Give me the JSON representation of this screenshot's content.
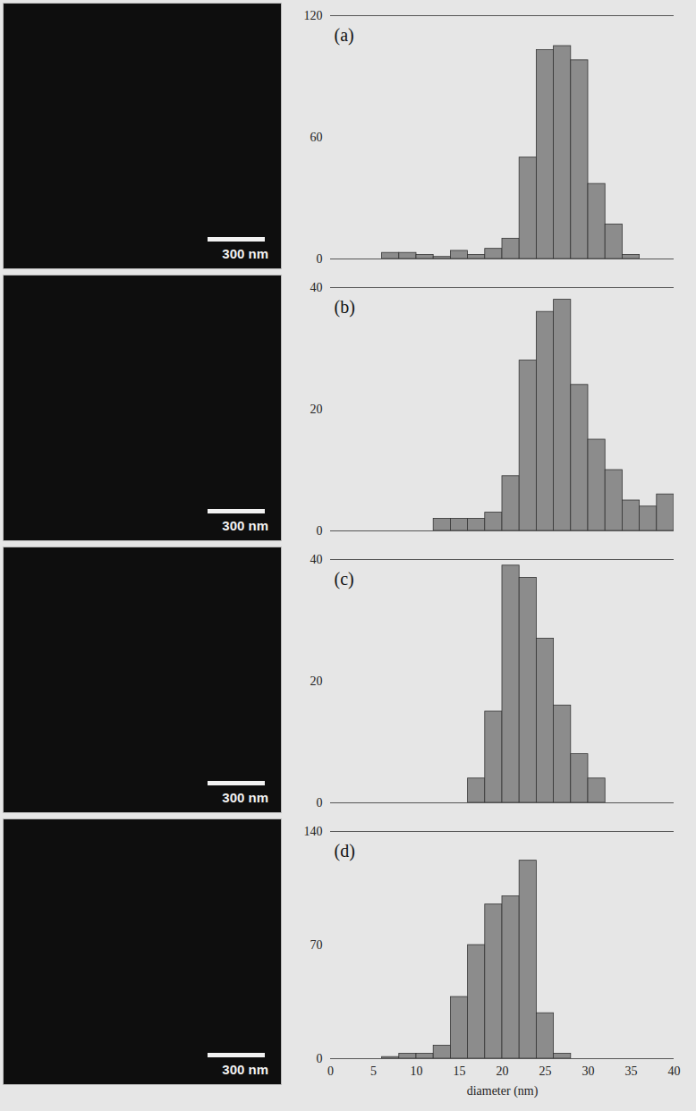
{
  "chart_data": [
    {
      "type": "histogram",
      "title": "(a)",
      "bins": [
        0,
        2,
        4,
        6,
        8,
        10,
        12,
        14,
        16,
        18,
        20,
        22,
        24,
        26,
        28,
        30,
        32,
        34,
        36,
        38,
        40
      ],
      "counts": [
        0,
        0,
        0,
        3,
        3,
        2,
        1,
        4,
        2,
        5,
        10,
        50,
        103,
        105,
        98,
        37,
        17,
        2,
        0,
        0
      ],
      "xlim": [
        0,
        40
      ],
      "ylim": [
        0,
        120
      ],
      "yticks": [
        0,
        60,
        120
      ],
      "tick_labels": "y",
      "color": "#8c8c8c"
    },
    {
      "type": "histogram",
      "title": "(b)",
      "bins": [
        0,
        2,
        4,
        6,
        8,
        10,
        12,
        14,
        16,
        18,
        20,
        22,
        24,
        26,
        28,
        30,
        32,
        34,
        36,
        38,
        40
      ],
      "counts": [
        0,
        0,
        0,
        0,
        0,
        0,
        2,
        2,
        2,
        3,
        9,
        28,
        36,
        38,
        24,
        15,
        10,
        5,
        4,
        6
      ],
      "xlim": [
        0,
        40
      ],
      "ylim": [
        0,
        40
      ],
      "yticks": [
        0,
        20,
        40
      ],
      "tick_labels": "y",
      "color": "#8c8c8c"
    },
    {
      "type": "histogram",
      "title": "(c)",
      "bins": [
        0,
        2,
        4,
        6,
        8,
        10,
        12,
        14,
        16,
        18,
        20,
        22,
        24,
        26,
        28,
        30,
        32,
        34,
        36,
        38,
        40
      ],
      "counts": [
        0,
        0,
        0,
        0,
        0,
        0,
        0,
        0,
        4,
        15,
        39,
        37,
        27,
        16,
        8,
        4,
        0,
        0,
        0,
        0
      ],
      "xlim": [
        0,
        40
      ],
      "ylim": [
        0,
        40
      ],
      "yticks": [
        0,
        20,
        40
      ],
      "tick_labels": "y",
      "color": "#8c8c8c"
    },
    {
      "type": "histogram",
      "title": "(d)",
      "xlabel": "diameter (nm)",
      "bins": [
        0,
        2,
        4,
        6,
        8,
        10,
        12,
        14,
        16,
        18,
        20,
        22,
        24,
        26,
        28,
        30,
        32,
        34,
        36,
        38,
        40
      ],
      "counts": [
        0,
        0,
        0,
        1,
        3,
        3,
        8,
        38,
        70,
        95,
        100,
        122,
        28,
        3,
        0,
        0,
        0,
        0,
        0,
        0
      ],
      "xlim": [
        0,
        40
      ],
      "ylim": [
        0,
        140
      ],
      "xticks": [
        0,
        5,
        10,
        15,
        20,
        25,
        30,
        35,
        40
      ],
      "yticks": [
        0,
        70,
        140
      ],
      "color": "#8c8c8c"
    }
  ],
  "images": [
    {
      "scale_bar": "300 nm"
    },
    {
      "scale_bar": "300 nm"
    },
    {
      "scale_bar": "300 nm"
    },
    {
      "scale_bar": "300 nm"
    }
  ]
}
